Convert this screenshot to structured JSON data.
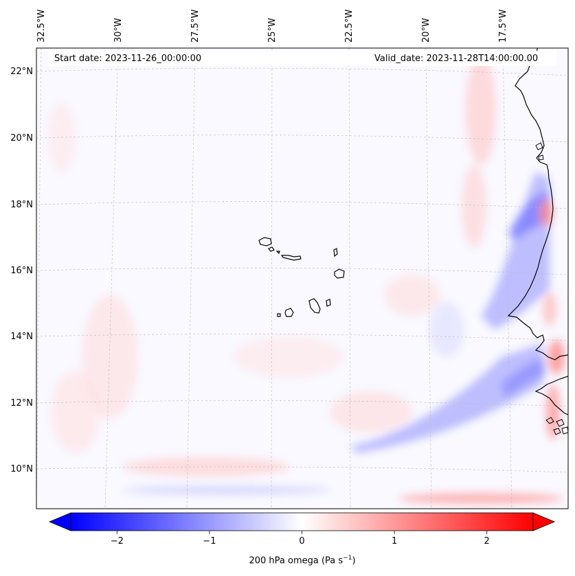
{
  "map": {
    "start_date_text": "Start date: 2023-11-26_00:00:00",
    "valid_date_text": "Valid_date: 2023-11-28T14:00:00.00",
    "longitude_labels": [
      "32.5°W",
      "30°W",
      "27.5°W",
      "25°W",
      "22.5°W",
      "20°W",
      "17.5°W"
    ],
    "latitude_labels": [
      "22°N",
      "20°N",
      "18°N",
      "16°N",
      "14°N",
      "12°N",
      "10°N"
    ],
    "longitude_values": [
      -32.5,
      -30,
      -27.5,
      -25,
      -22.5,
      -20,
      -17.5
    ],
    "latitude_values": [
      22,
      20,
      18,
      16,
      14,
      12,
      10
    ],
    "lon_range": [
      -32.5,
      -15.3
    ],
    "lat_range": [
      8.9,
      22.8
    ],
    "gridlines": true,
    "colors": {
      "negative": "#0000ff",
      "zero": "#ffffff",
      "positive": "#ff0000",
      "coastline": "#000000",
      "grid": "#b0b0b0"
    }
  },
  "colorbar": {
    "label_prefix": "200 hPa omega (Pa s",
    "label_exponent": "−1",
    "label_suffix": ")",
    "tick_labels": [
      "−2",
      "−1",
      "0",
      "1",
      "2"
    ],
    "tick_values": [
      -2,
      -1,
      0,
      1,
      2
    ],
    "range": [
      -2.5,
      2.5
    ],
    "extend": "both"
  }
}
